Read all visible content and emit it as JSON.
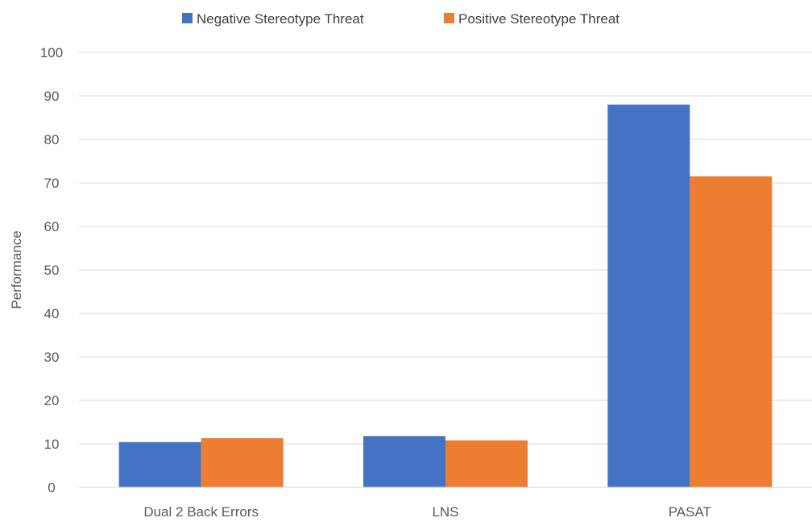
{
  "chart_data": {
    "type": "bar",
    "categories": [
      "Dual 2 Back Errors",
      "LNS",
      "PASAT"
    ],
    "series": [
      {
        "name": "Negative Stereotype Threat",
        "color": "#4472C4",
        "values": [
          10.4,
          11.8,
          88
        ]
      },
      {
        "name": "Positive Stereotype Threat",
        "color": "#ED7D31",
        "values": [
          11.3,
          10.8,
          71.5
        ]
      }
    ],
    "title": "",
    "xlabel": "",
    "ylabel": "Performance",
    "ylim": [
      0,
      100
    ],
    "yticks": [
      0,
      10,
      20,
      30,
      40,
      50,
      60,
      70,
      80,
      90,
      100
    ],
    "grid": true,
    "legend_position": "top"
  }
}
